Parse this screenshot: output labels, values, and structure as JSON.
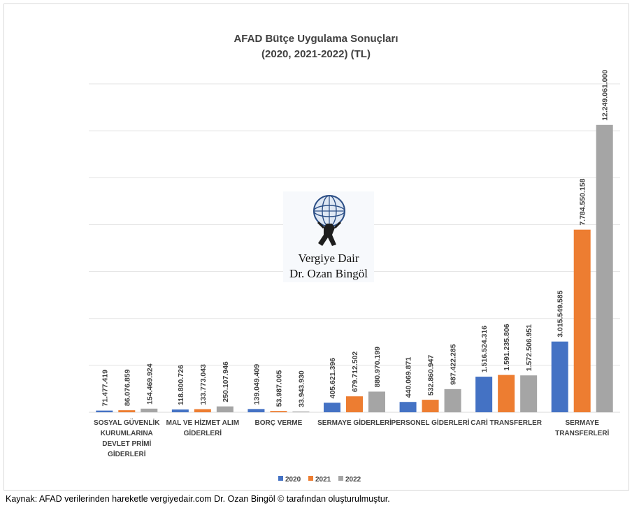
{
  "chart_data": {
    "type": "bar",
    "title": "AFAD Bütçe Uygulama Sonuçları",
    "subtitle": "(2020, 2021-2022) (TL)",
    "categories": [
      [
        "SOSYAL GÜVENLİK",
        "KURUMLARINA",
        "DEVLET PRİMİ",
        "GİDERLERİ"
      ],
      [
        "MAL VE HİZMET ALIM",
        "GİDERLERİ"
      ],
      [
        "BORÇ VERME"
      ],
      [
        "SERMAYE GİDERLERİ"
      ],
      [
        "PERSONEL GİDERLERİ"
      ],
      [
        "CARİ TRANSFERLER"
      ],
      [
        "SERMAYE",
        "TRANSFERLERİ"
      ]
    ],
    "series": [
      {
        "name": "2020",
        "color": "#4472C4",
        "values": [
          71477419,
          118800726,
          139049409,
          405621396,
          440069871,
          1516524316,
          3015549585
        ],
        "labels": [
          "71.477.419",
          "118.800.726",
          "139.049.409",
          "405.621.396",
          "440.069.871",
          "1.516.524.316",
          "3.015.549.585"
        ]
      },
      {
        "name": "2021",
        "color": "#ED7D31",
        "values": [
          86076859,
          133773043,
          53987005,
          679712502,
          532860947,
          1591235806,
          7784550158
        ],
        "labels": [
          "86.076.859",
          "133.773.043",
          "53.987.005",
          "679.712.502",
          "532.860.947",
          "1.591.235.806",
          "7.784.550.158"
        ]
      },
      {
        "name": "2022",
        "color": "#A5A5A5",
        "values": [
          154469924,
          250107946,
          33943930,
          880970199,
          987422285,
          1572506951,
          12249061000
        ],
        "labels": [
          "154.469.924",
          "250.107.946",
          "33.943.930",
          "880.970.199",
          "987.422.285",
          "1.572.506.951",
          "12.249.061.000"
        ]
      }
    ],
    "ylim": [
      0,
      14000000000
    ],
    "grid": true,
    "legend": "bottom"
  },
  "watermark": {
    "line1": "Vergiye Dair",
    "line2": "Dr. Ozan Bingöl",
    "icon": "globe-atlas-icon"
  },
  "source_note": "Kaynak: AFAD verilerinden hareketle vergiyedair.com Dr. Ozan Bingöl © tarafından oluşturulmuştur."
}
